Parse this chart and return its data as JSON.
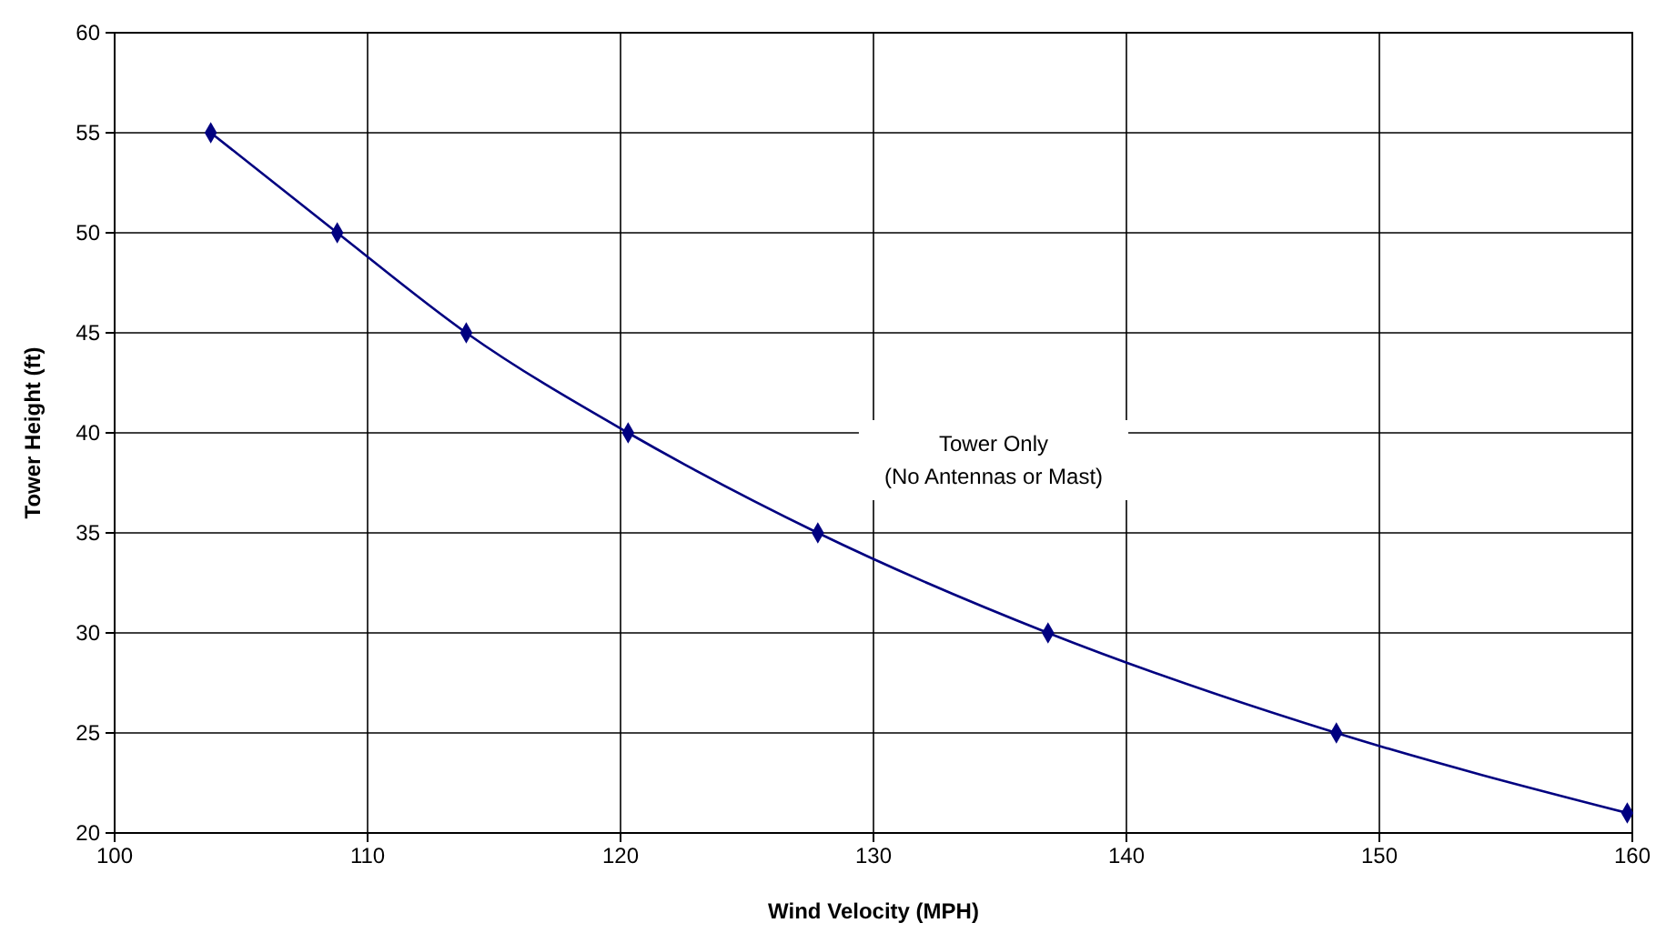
{
  "chart_data": {
    "type": "line",
    "xlabel": "Wind Velocity (MPH)",
    "ylabel": "Tower Height (ft)",
    "x": [
      103.8,
      108.8,
      113.9,
      120.3,
      127.8,
      136.9,
      148.3,
      159.8
    ],
    "series": [
      {
        "color": "#000080",
        "values": [
          55,
          50,
          45,
          40,
          35,
          30,
          25,
          21
        ]
      }
    ],
    "xlim": [
      100,
      160
    ],
    "xticks": [
      100,
      110,
      120,
      130,
      140,
      150,
      160
    ],
    "ylim": [
      20,
      60
    ],
    "yticks": [
      20,
      25,
      30,
      35,
      40,
      45,
      50,
      55,
      60
    ],
    "grid": true,
    "marker": "diamond",
    "line_style": "solid",
    "annotations": [
      "Tower Only\n(No Antennas or Mast)"
    ]
  }
}
